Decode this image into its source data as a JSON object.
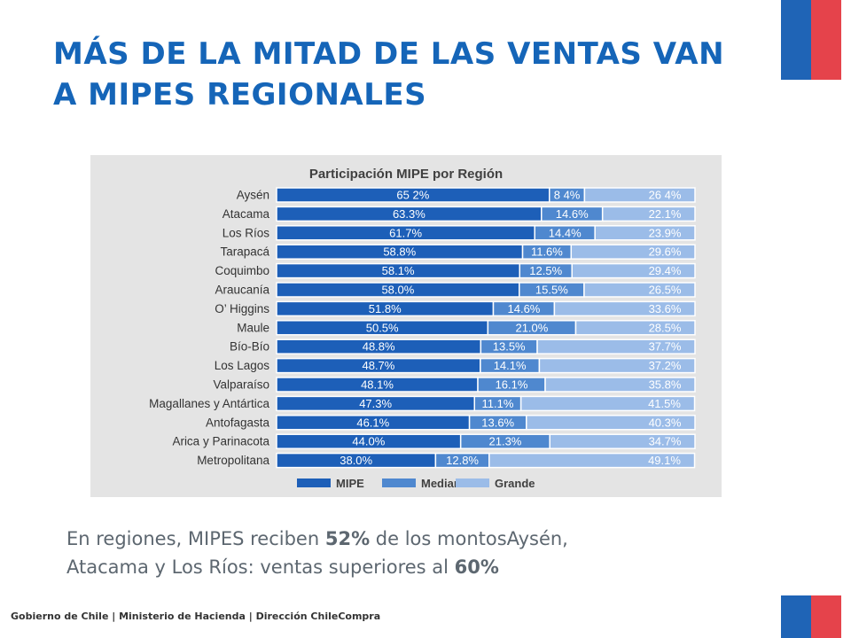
{
  "slide": {
    "title_line1": "MÁS DE LA MITAD DE LAS VENTAS VAN",
    "title_line2": "A MIPES REGIONALES",
    "body_line1_prefix": "En regiones, MIPES reciben ",
    "body_line1_bold": "52%",
    "body_line1_suffix": " de los montosAysén,",
    "body_line2_prefix": "Atacama y Los Ríos: ventas superiores al ",
    "body_line2_bold": "60%",
    "footer": "Gobierno de Chile | Ministerio de Hacienda | Dirección ChileCompra",
    "flag_colors": {
      "blue": "#1f64b6",
      "red": "#e5434b"
    },
    "title_color": "#1565b8"
  },
  "chart_data": {
    "type": "bar",
    "orientation": "horizontal",
    "stacked": true,
    "title": "Participación MIPE por Región",
    "categories": [
      "Aysén",
      "Atacama",
      "Los Ríos",
      "Tarapacá",
      "Coquimbo",
      "Araucanía",
      "O’ Higgins",
      "Maule",
      "Bío-Bío",
      "Los Lagos",
      "Valparaíso",
      "Magallanes y Antártica",
      "Antofagasta",
      "Arica y Parinacota",
      "Metropolitana"
    ],
    "series": [
      {
        "name": "MIPE",
        "color": "#1d5fb8",
        "values": [
          65.2,
          63.3,
          61.7,
          58.8,
          58.1,
          58.0,
          51.8,
          50.5,
          48.8,
          48.7,
          48.1,
          47.3,
          46.1,
          44.0,
          38.0
        ],
        "labels": [
          "65 2%",
          "63.3%",
          "61.7%",
          "58.8%",
          "58.1%",
          "58.0%",
          "51.8%",
          "50.5%",
          "48.8%",
          "48.7%",
          "48.1%",
          "47.3%",
          "46.1%",
          "44.0%",
          "38.0%"
        ]
      },
      {
        "name": "Mediana",
        "color": "#4f88cf",
        "values": [
          8.4,
          14.6,
          14.4,
          11.6,
          12.5,
          15.5,
          14.6,
          21.0,
          13.5,
          14.1,
          16.1,
          11.1,
          13.6,
          21.3,
          12.8
        ],
        "labels": [
          "8 4%",
          "14.6%",
          "14.4%",
          "11.6%",
          "12.5%",
          "15.5%",
          "14.6%",
          "21.0%",
          "13.5%",
          "14.1%",
          "16.1%",
          "11.1%",
          "13.6%",
          "21.3%",
          "12.8%"
        ]
      },
      {
        "name": "Grande",
        "color": "#9bbce8",
        "values": [
          26.4,
          22.1,
          23.9,
          29.6,
          29.4,
          26.5,
          33.6,
          28.5,
          37.7,
          37.2,
          35.8,
          41.5,
          40.3,
          34.7,
          49.1
        ],
        "labels": [
          "26 4%",
          "22.1%",
          "23.9%",
          "29.6%",
          "29.4%",
          "26.5%",
          "33.6%",
          "28.5%",
          "37.7%",
          "37.2%",
          "35.8%",
          "41.5%",
          "40.3%",
          "34.7%",
          "49.1%"
        ]
      }
    ],
    "xlim": [
      0,
      100
    ],
    "legend_position": "bottom",
    "grid": false
  }
}
